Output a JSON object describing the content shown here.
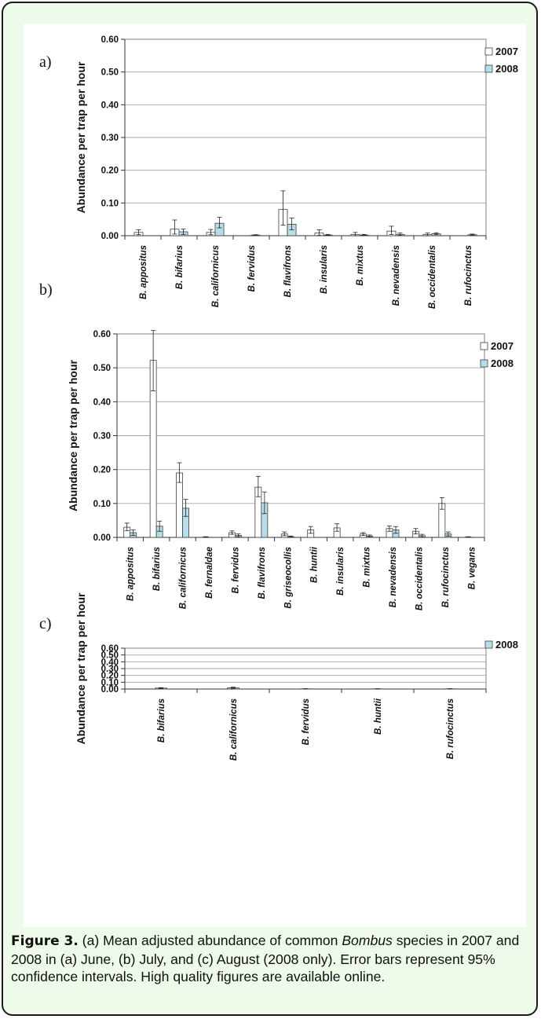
{
  "caption": {
    "label": "Figure 3.",
    "text_before_italic": " (a) Mean adjusted abundance of common ",
    "italic_text": "Bombus",
    "text_after_italic": " species in 2007 and 2008 in (a) June, (b) July, and (c) August (2008 only). Error bars represent 95% confidence intervals. High quality figures are available online."
  },
  "colors": {
    "bar_2007": "#ffffff",
    "bar_2008": "#b7dde8",
    "bar_stroke": "#404040",
    "grid": "#a6a6a6",
    "frame_bg": "#eefaea"
  },
  "chart_data": [
    {
      "type": "bar",
      "panel_label": "a)",
      "ylabel": "Abundance per trap per hour",
      "ylim": [
        0,
        0.6
      ],
      "yticks": [
        0,
        0.1,
        0.2,
        0.3,
        0.4,
        0.5,
        0.6
      ],
      "ytick_labels": [
        "0.00",
        "0.10",
        "0.20",
        "0.30",
        "0.40",
        "0.50",
        "0.60"
      ],
      "grid": true,
      "legend_position": "top-right",
      "categories": [
        "B. appositus",
        "B. bifarius",
        "B. californicus",
        "B. fervidus",
        "B. flavifrons",
        "B. insularis",
        "B. mixtus",
        "B. nevadensis",
        "B. occidentalis",
        "B. rufocinctus"
      ],
      "series": [
        {
          "name": "2007",
          "values": [
            0.01,
            0.02,
            0.01,
            0.0,
            0.08,
            0.008,
            0.004,
            0.014,
            0.004,
            0.0
          ],
          "err_low": [
            0.003,
            0.005,
            0.003,
            0.0,
            0.032,
            0.001,
            0.0,
            0.004,
            0.0,
            0.0
          ],
          "err_high": [
            0.018,
            0.048,
            0.019,
            0.0,
            0.137,
            0.018,
            0.01,
            0.029,
            0.008,
            0.0
          ]
        },
        {
          "name": "2008",
          "values": [
            0.0,
            0.012,
            0.038,
            0.002,
            0.035,
            0.002,
            0.002,
            0.004,
            0.006,
            0.003
          ],
          "err_low": [
            0.0,
            0.004,
            0.024,
            0.001,
            0.018,
            0.001,
            0.001,
            0.001,
            0.003,
            0.001
          ],
          "err_high": [
            0.0,
            0.02,
            0.056,
            0.003,
            0.054,
            0.004,
            0.004,
            0.008,
            0.009,
            0.005
          ]
        }
      ]
    },
    {
      "type": "bar",
      "panel_label": "b)",
      "ylabel": "Abundance per trap per hour",
      "ylim": [
        0,
        0.6
      ],
      "yticks": [
        0,
        0.1,
        0.2,
        0.3,
        0.4,
        0.5,
        0.6
      ],
      "ytick_labels": [
        "0.00",
        "0.10",
        "0.20",
        "0.30",
        "0.40",
        "0.50",
        "0.60"
      ],
      "grid": true,
      "legend_position": "top-right",
      "categories": [
        "B. appositus",
        "B. bifarius",
        "B. californicus",
        "B. fernaldae",
        "B. fervidus",
        "B. flavifrons",
        "B. griseocollis",
        "B. huntii",
        "B. insularis",
        "B. mixtus",
        "B. nevadensis",
        "B. occidentalis",
        "B. rufocinctus",
        "B. vegans"
      ],
      "series": [
        {
          "name": "2007",
          "values": [
            0.03,
            0.522,
            0.19,
            0.001,
            0.014,
            0.148,
            0.01,
            0.022,
            0.028,
            0.01,
            0.026,
            0.018,
            0.1,
            0.001
          ],
          "err_low": [
            0.02,
            0.432,
            0.162,
            0.0,
            0.009,
            0.12,
            0.005,
            0.012,
            0.018,
            0.006,
            0.018,
            0.01,
            0.083,
            0.0
          ],
          "err_high": [
            0.042,
            0.61,
            0.22,
            0.002,
            0.019,
            0.18,
            0.016,
            0.032,
            0.04,
            0.014,
            0.034,
            0.026,
            0.117,
            0.002
          ]
        },
        {
          "name": "2008",
          "values": [
            0.014,
            0.033,
            0.086,
            0.0,
            0.006,
            0.102,
            0.002,
            0.0,
            0.0,
            0.004,
            0.022,
            0.005,
            0.01,
            0.0
          ],
          "err_low": [
            0.006,
            0.018,
            0.062,
            0.0,
            0.002,
            0.07,
            0.0,
            0.0,
            0.0,
            0.001,
            0.012,
            0.001,
            0.004,
            0.0
          ],
          "err_high": [
            0.022,
            0.048,
            0.112,
            0.0,
            0.01,
            0.134,
            0.004,
            0.0,
            0.0,
            0.007,
            0.032,
            0.009,
            0.016,
            0.0
          ]
        }
      ]
    },
    {
      "type": "bar",
      "panel_label": "c)",
      "ylabel": "Abundance per trap per hour",
      "ylim": [
        0,
        0.6
      ],
      "yticks": [
        0,
        0.1,
        0.2,
        0.3,
        0.4,
        0.5,
        0.6
      ],
      "ytick_labels": [
        "0.00",
        "0.10",
        "0.20",
        "0.30",
        "0.40",
        "0.50",
        "0.60"
      ],
      "grid": true,
      "legend_position": "top-right",
      "categories": [
        "B. bifarius",
        "B. californicus",
        "B. fervidus",
        "B. huntii",
        "B. rufocinctus"
      ],
      "series": [
        {
          "name": "2008",
          "values": [
            0.014,
            0.018,
            0.003,
            0.003,
            0.003
          ],
          "err_low": [
            0.008,
            0.008,
            0.001,
            0.001,
            0.001
          ],
          "err_high": [
            0.02,
            0.028,
            0.005,
            0.005,
            0.005
          ]
        }
      ]
    }
  ]
}
